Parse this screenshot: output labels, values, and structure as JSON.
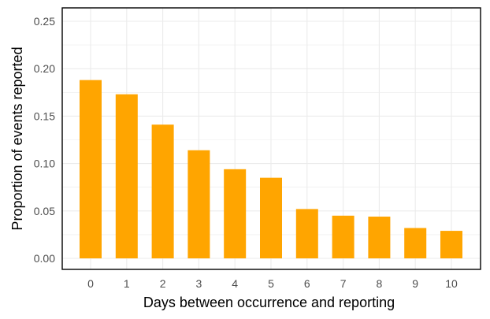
{
  "chart_data": {
    "type": "bar",
    "xlabel": "Days between occurrence and reporting",
    "ylabel": "Proportion of events reported",
    "categories": [
      "0",
      "1",
      "2",
      "3",
      "4",
      "5",
      "6",
      "7",
      "8",
      "9",
      "10"
    ],
    "values": [
      0.188,
      0.173,
      0.141,
      0.114,
      0.094,
      0.085,
      0.052,
      0.045,
      0.044,
      0.032,
      0.029
    ],
    "ylim": [
      0,
      0.26
    ],
    "yticks": [
      0.0,
      0.05,
      0.1,
      0.15,
      0.2,
      0.25
    ],
    "ytick_labels": [
      "0.00",
      "0.05",
      "0.10",
      "0.15",
      "0.20",
      "0.25"
    ],
    "grid": true,
    "legend": "none",
    "colors": {
      "bar": "#FFA500",
      "grid": "#EBEBEB",
      "panel_border": "#000000",
      "background": "#FFFFFF"
    }
  }
}
